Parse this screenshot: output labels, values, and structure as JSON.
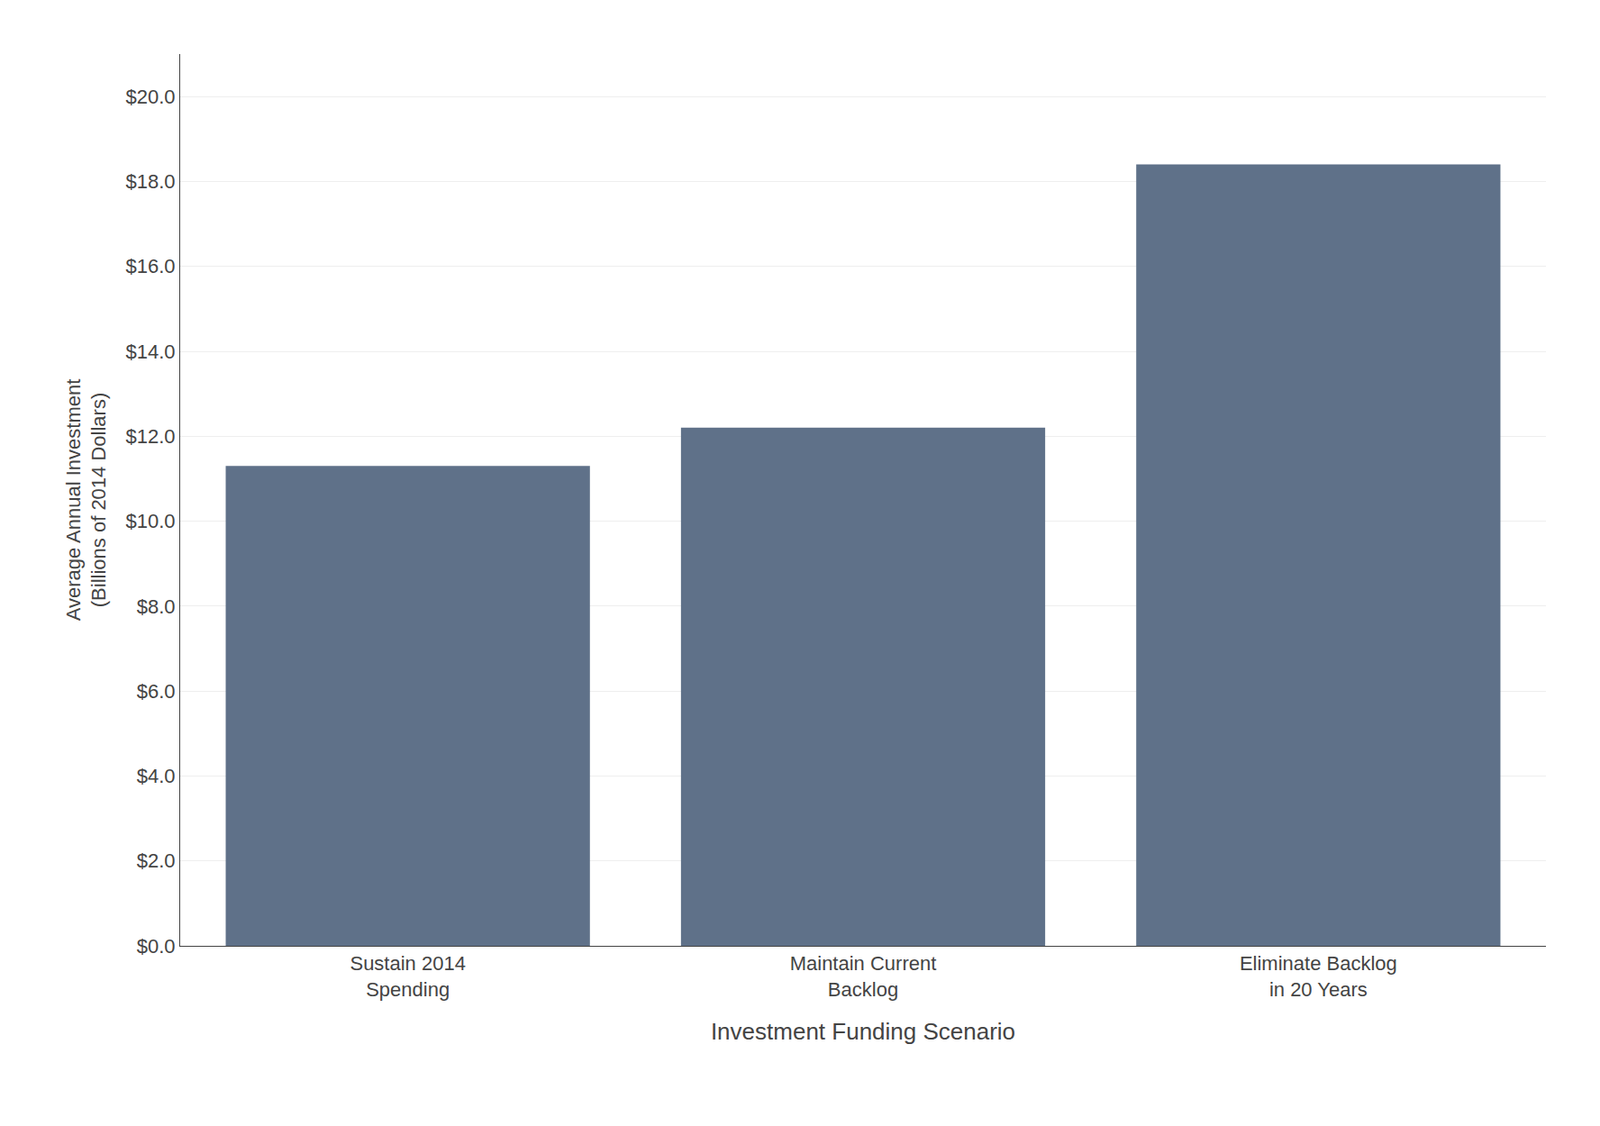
{
  "chart_data": {
    "type": "bar",
    "categories": [
      "Sustain 2014\nSpending",
      "Maintain Current\nBacklog",
      "Eliminate Backlog\nin 20 Years"
    ],
    "values": [
      11.3,
      12.2,
      18.4
    ],
    "color": "#5f7189",
    "xlabel": "Investment Funding Scenario",
    "ylabel": "Average Annual Investment\n(Billions of 2014 Dollars)",
    "ylim": [
      0,
      21
    ],
    "yticks": [
      {
        "value": 0.0,
        "label": "$0.0"
      },
      {
        "value": 2.0,
        "label": "$2.0"
      },
      {
        "value": 4.0,
        "label": "$4.0"
      },
      {
        "value": 6.0,
        "label": "$6.0"
      },
      {
        "value": 8.0,
        "label": "$8.0"
      },
      {
        "value": 10.0,
        "label": "$10.0"
      },
      {
        "value": 12.0,
        "label": "$12.0"
      },
      {
        "value": 14.0,
        "label": "$14.0"
      },
      {
        "value": 16.0,
        "label": "$16.0"
      },
      {
        "value": 18.0,
        "label": "$18.0"
      },
      {
        "value": 20.0,
        "label": "$20.0"
      }
    ],
    "grid": true
  }
}
